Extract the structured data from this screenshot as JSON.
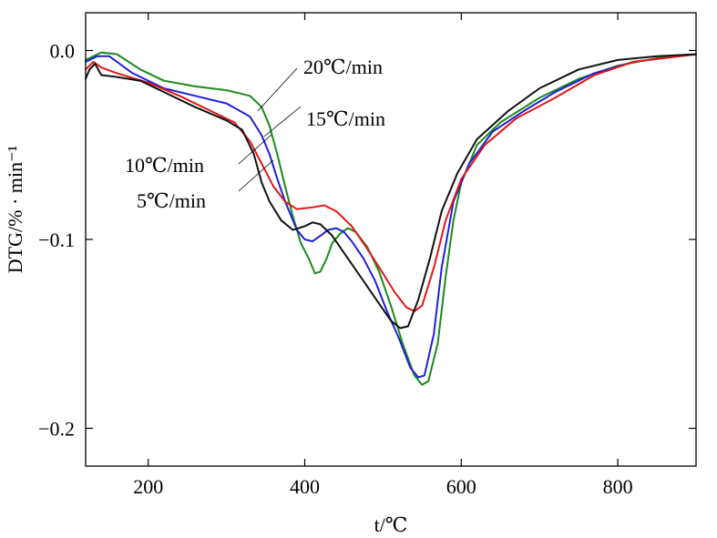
{
  "chart_data": {
    "type": "line",
    "xlabel": "t/℃",
    "ylabel": "DTG/% · min⁻¹",
    "xlim": [
      120,
      900
    ],
    "ylim": [
      -0.22,
      0.02
    ],
    "x_ticks": [
      200,
      400,
      600,
      800
    ],
    "x_tick_labels": [
      "200",
      "400",
      "600",
      "800"
    ],
    "y_ticks": [
      0.0,
      -0.1,
      -0.2
    ],
    "y_tick_labels": [
      "0.0",
      "−0.1",
      "−0.2"
    ],
    "grid": false,
    "legend": "inline labels with leader lines",
    "series": [
      {
        "name": "20℃/min",
        "color": "#1a8a1a",
        "points": [
          [
            120,
            -0.005
          ],
          [
            140,
            -0.001
          ],
          [
            160,
            -0.002
          ],
          [
            190,
            -0.01
          ],
          [
            220,
            -0.016
          ],
          [
            260,
            -0.019
          ],
          [
            300,
            -0.021
          ],
          [
            330,
            -0.024
          ],
          [
            345,
            -0.03
          ],
          [
            355,
            -0.04
          ],
          [
            365,
            -0.055
          ],
          [
            375,
            -0.072
          ],
          [
            385,
            -0.088
          ],
          [
            395,
            -0.102
          ],
          [
            405,
            -0.11
          ],
          [
            413,
            -0.118
          ],
          [
            420,
            -0.117
          ],
          [
            428,
            -0.11
          ],
          [
            435,
            -0.102
          ],
          [
            445,
            -0.097
          ],
          [
            455,
            -0.094
          ],
          [
            465,
            -0.096
          ],
          [
            480,
            -0.104
          ],
          [
            495,
            -0.117
          ],
          [
            510,
            -0.135
          ],
          [
            525,
            -0.155
          ],
          [
            540,
            -0.172
          ],
          [
            550,
            -0.177
          ],
          [
            558,
            -0.175
          ],
          [
            570,
            -0.155
          ],
          [
            580,
            -0.12
          ],
          [
            590,
            -0.09
          ],
          [
            600,
            -0.07
          ],
          [
            620,
            -0.05
          ],
          [
            650,
            -0.038
          ],
          [
            700,
            -0.025
          ],
          [
            750,
            -0.015
          ],
          [
            800,
            -0.008
          ],
          [
            850,
            -0.004
          ],
          [
            900,
            -0.002
          ]
        ]
      },
      {
        "name": "15℃/min",
        "color": "#1f1fd8",
        "points": [
          [
            120,
            -0.006
          ],
          [
            135,
            -0.003
          ],
          [
            150,
            -0.003
          ],
          [
            180,
            -0.012
          ],
          [
            220,
            -0.02
          ],
          [
            260,
            -0.024
          ],
          [
            300,
            -0.028
          ],
          [
            330,
            -0.035
          ],
          [
            345,
            -0.045
          ],
          [
            355,
            -0.055
          ],
          [
            365,
            -0.068
          ],
          [
            375,
            -0.08
          ],
          [
            390,
            -0.095
          ],
          [
            400,
            -0.1
          ],
          [
            410,
            -0.101
          ],
          [
            420,
            -0.098
          ],
          [
            430,
            -0.095
          ],
          [
            440,
            -0.094
          ],
          [
            450,
            -0.096
          ],
          [
            460,
            -0.101
          ],
          [
            475,
            -0.11
          ],
          [
            490,
            -0.122
          ],
          [
            505,
            -0.138
          ],
          [
            520,
            -0.152
          ],
          [
            535,
            -0.168
          ],
          [
            545,
            -0.173
          ],
          [
            553,
            -0.172
          ],
          [
            565,
            -0.15
          ],
          [
            575,
            -0.115
          ],
          [
            590,
            -0.08
          ],
          [
            610,
            -0.06
          ],
          [
            640,
            -0.043
          ],
          [
            680,
            -0.032
          ],
          [
            720,
            -0.022
          ],
          [
            770,
            -0.012
          ],
          [
            820,
            -0.006
          ],
          [
            860,
            -0.004
          ],
          [
            900,
            -0.002
          ]
        ]
      },
      {
        "name": "10℃/min",
        "color": "#e01818",
        "points": [
          [
            120,
            -0.01
          ],
          [
            130,
            -0.006
          ],
          [
            140,
            -0.009
          ],
          [
            160,
            -0.012
          ],
          [
            200,
            -0.017
          ],
          [
            240,
            -0.024
          ],
          [
            280,
            -0.032
          ],
          [
            310,
            -0.038
          ],
          [
            330,
            -0.048
          ],
          [
            345,
            -0.06
          ],
          [
            360,
            -0.072
          ],
          [
            375,
            -0.08
          ],
          [
            390,
            -0.084
          ],
          [
            410,
            -0.083
          ],
          [
            425,
            -0.082
          ],
          [
            440,
            -0.085
          ],
          [
            460,
            -0.093
          ],
          [
            480,
            -0.105
          ],
          [
            500,
            -0.118
          ],
          [
            515,
            -0.128
          ],
          [
            530,
            -0.136
          ],
          [
            540,
            -0.138
          ],
          [
            550,
            -0.135
          ],
          [
            565,
            -0.115
          ],
          [
            580,
            -0.09
          ],
          [
            600,
            -0.068
          ],
          [
            630,
            -0.05
          ],
          [
            670,
            -0.036
          ],
          [
            720,
            -0.025
          ],
          [
            770,
            -0.013
          ],
          [
            820,
            -0.006
          ],
          [
            860,
            -0.004
          ],
          [
            900,
            -0.002
          ]
        ]
      },
      {
        "name": "5℃/min",
        "color": "#111111",
        "points": [
          [
            120,
            -0.015
          ],
          [
            125,
            -0.01
          ],
          [
            132,
            -0.007
          ],
          [
            140,
            -0.013
          ],
          [
            160,
            -0.014
          ],
          [
            190,
            -0.016
          ],
          [
            220,
            -0.022
          ],
          [
            260,
            -0.03
          ],
          [
            300,
            -0.037
          ],
          [
            320,
            -0.042
          ],
          [
            335,
            -0.055
          ],
          [
            345,
            -0.07
          ],
          [
            355,
            -0.08
          ],
          [
            370,
            -0.09
          ],
          [
            385,
            -0.095
          ],
          [
            400,
            -0.093
          ],
          [
            410,
            -0.091
          ],
          [
            420,
            -0.092
          ],
          [
            435,
            -0.098
          ],
          [
            455,
            -0.11
          ],
          [
            475,
            -0.122
          ],
          [
            495,
            -0.134
          ],
          [
            510,
            -0.143
          ],
          [
            522,
            -0.147
          ],
          [
            532,
            -0.146
          ],
          [
            545,
            -0.132
          ],
          [
            560,
            -0.11
          ],
          [
            575,
            -0.085
          ],
          [
            595,
            -0.065
          ],
          [
            620,
            -0.047
          ],
          [
            660,
            -0.032
          ],
          [
            700,
            -0.02
          ],
          [
            750,
            -0.01
          ],
          [
            800,
            -0.005
          ],
          [
            850,
            -0.003
          ],
          [
            900,
            -0.002
          ]
        ]
      }
    ],
    "annotations": [
      "20℃/min",
      "15℃/min",
      "10℃/min",
      "5℃/min"
    ]
  }
}
